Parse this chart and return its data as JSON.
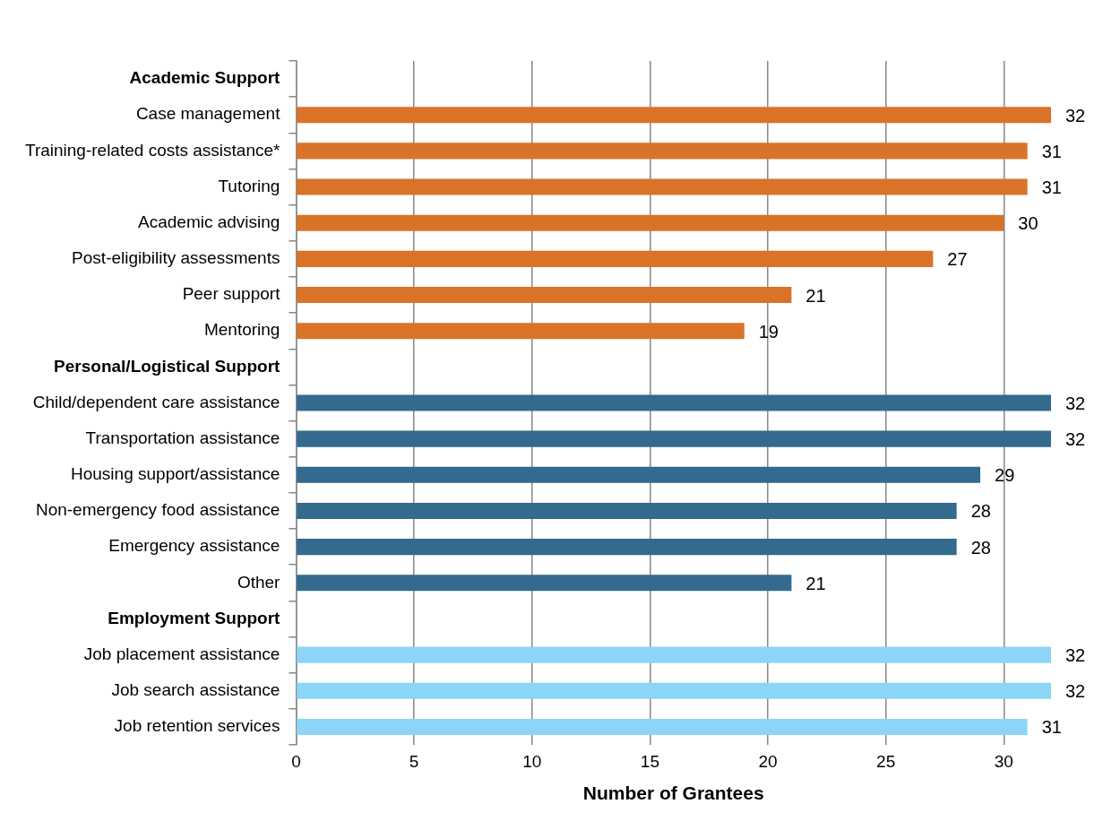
{
  "chart_data": {
    "type": "bar",
    "orientation": "horizontal",
    "categories": [
      "Academic Support",
      "Case management",
      "Training-related costs assistance*",
      "Tutoring",
      "Academic advising",
      "Post-eligibility assessments",
      "Peer support",
      "Mentoring",
      "Personal/Logistical Support",
      "Child/dependent care assistance",
      "Transportation assistance",
      "Housing support/assistance",
      "Non-emergency food assistance",
      "Emergency assistance",
      "Other",
      "Employment Support",
      "Job placement assistance",
      "Job search assistance",
      "Job retention services"
    ],
    "values": [
      null,
      32,
      31,
      31,
      30,
      27,
      21,
      19,
      null,
      32,
      32,
      29,
      28,
      28,
      21,
      null,
      32,
      32,
      31
    ],
    "colors": [
      null,
      "#d97328",
      "#d97328",
      "#d97328",
      "#d97328",
      "#d97328",
      "#d97328",
      "#d97328",
      null,
      "#336a8e",
      "#336a8e",
      "#336a8e",
      "#336a8e",
      "#336a8e",
      "#336a8e",
      null,
      "#8dd5f6",
      "#8dd5f6",
      "#8dd5f6"
    ],
    "xlabel": "Number of Grantees",
    "xlim": [
      0,
      32
    ],
    "xticks": [
      0,
      5,
      10,
      15,
      20,
      25,
      30
    ],
    "grid": "x",
    "data_labels": true
  }
}
